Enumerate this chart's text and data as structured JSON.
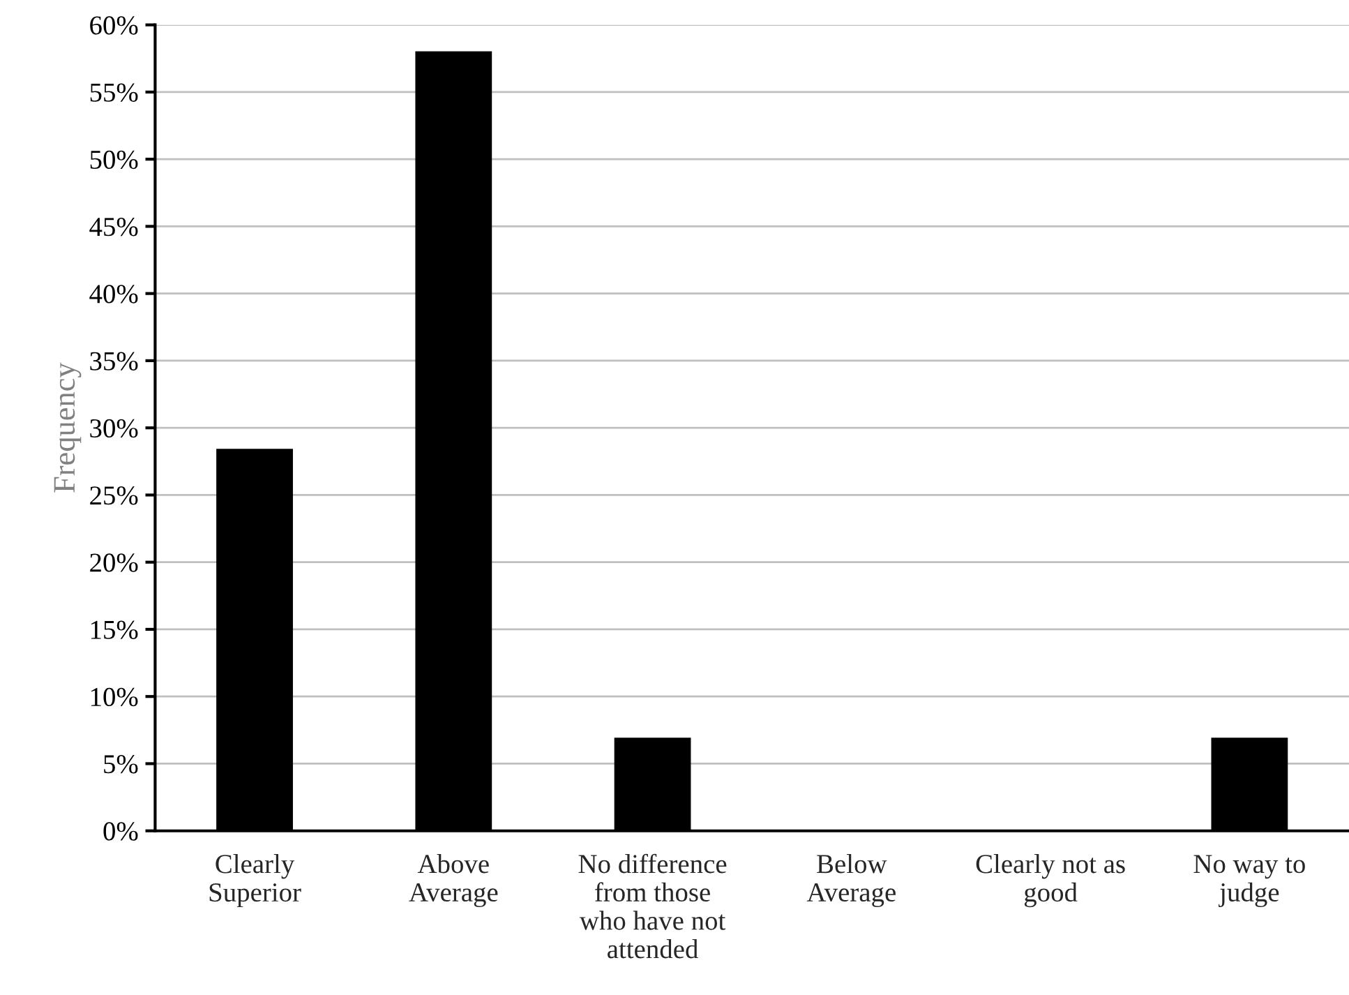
{
  "chart_data": {
    "type": "bar",
    "ylabel": "Frequency",
    "categories": [
      "Clearly\nSuperior",
      "Above\nAverage",
      "No difference\nfrom those\nwho have not\nattended",
      "Below\nAverage",
      "Clearly not as\ngood",
      "No way to\njudge"
    ],
    "values": [
      28.4,
      58,
      6.9,
      0,
      0,
      6.9
    ],
    "color": "#000000",
    "ylim": [
      0,
      60
    ],
    "yticks": [
      {
        "value": 0,
        "label": "0%"
      },
      {
        "value": 5,
        "label": "5%"
      },
      {
        "value": 10,
        "label": "10%"
      },
      {
        "value": 15,
        "label": "15%"
      },
      {
        "value": 20,
        "label": "20%"
      },
      {
        "value": 25,
        "label": "25%"
      },
      {
        "value": 30,
        "label": "30%"
      },
      {
        "value": 35,
        "label": "35%"
      },
      {
        "value": 40,
        "label": "40%"
      },
      {
        "value": 45,
        "label": "45%"
      },
      {
        "value": 50,
        "label": "50%"
      },
      {
        "value": 55,
        "label": "55%"
      },
      {
        "value": 60,
        "label": "60%"
      }
    ],
    "grid": "y"
  }
}
